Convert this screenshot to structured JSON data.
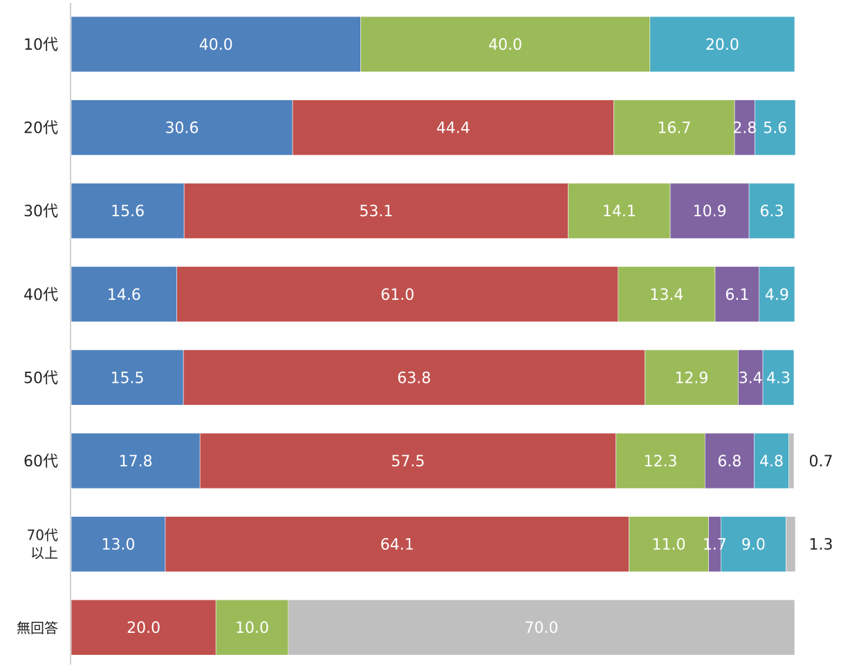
{
  "chart_data": {
    "type": "bar",
    "orientation": "horizontal",
    "stacked": true,
    "xlim": [
      0,
      100
    ],
    "categories": [
      "10代",
      "20代",
      "30代",
      "40代",
      "50代",
      "60代",
      "70代\n以上",
      "無回答"
    ],
    "series": [
      {
        "values": [
          40.0,
          30.6,
          15.6,
          14.6,
          15.5,
          17.8,
          13.0,
          0
        ],
        "color": "#4f81bd"
      },
      {
        "values": [
          0,
          44.4,
          53.1,
          61.0,
          63.8,
          57.5,
          64.1,
          20.0
        ],
        "color": "#c0504d"
      },
      {
        "values": [
          40.0,
          16.7,
          14.1,
          13.4,
          12.9,
          12.3,
          11.0,
          10.0
        ],
        "color": "#9bbb59"
      },
      {
        "values": [
          0,
          2.8,
          10.9,
          6.1,
          3.4,
          6.8,
          1.7,
          0
        ],
        "color": "#8064a2"
      },
      {
        "values": [
          20.0,
          5.6,
          6.3,
          4.9,
          4.3,
          4.8,
          9.0,
          0
        ],
        "color": "#4bacc6"
      },
      {
        "values": [
          0,
          0,
          0,
          0,
          0,
          0.7,
          1.3,
          70.0
        ],
        "color": "#bfbfbf"
      }
    ],
    "data_labels": [
      [
        "40.0",
        "",
        "40.0",
        "",
        "20.0",
        ""
      ],
      [
        "30.6",
        "44.4",
        "16.7",
        "2.8",
        "5.6",
        ""
      ],
      [
        "15.6",
        "53.1",
        "14.1",
        "10.9",
        "6.3",
        ""
      ],
      [
        "14.6",
        "61.0",
        "13.4",
        "6.1",
        "4.9",
        ""
      ],
      [
        "15.5",
        "63.8",
        "12.9",
        "3.4",
        "4.3",
        ""
      ],
      [
        "17.8",
        "57.5",
        "12.3",
        "6.8",
        "4.8",
        "0.7"
      ],
      [
        "13.0",
        "64.1",
        "11.0",
        "1.7",
        "9.0",
        "1.3"
      ],
      [
        "",
        "20.0",
        "10.0",
        "",
        "",
        "70.0"
      ]
    ],
    "outside_label_series": 5,
    "outside_label_rows": [
      5,
      6
    ],
    "grid": false,
    "legend": "none"
  }
}
